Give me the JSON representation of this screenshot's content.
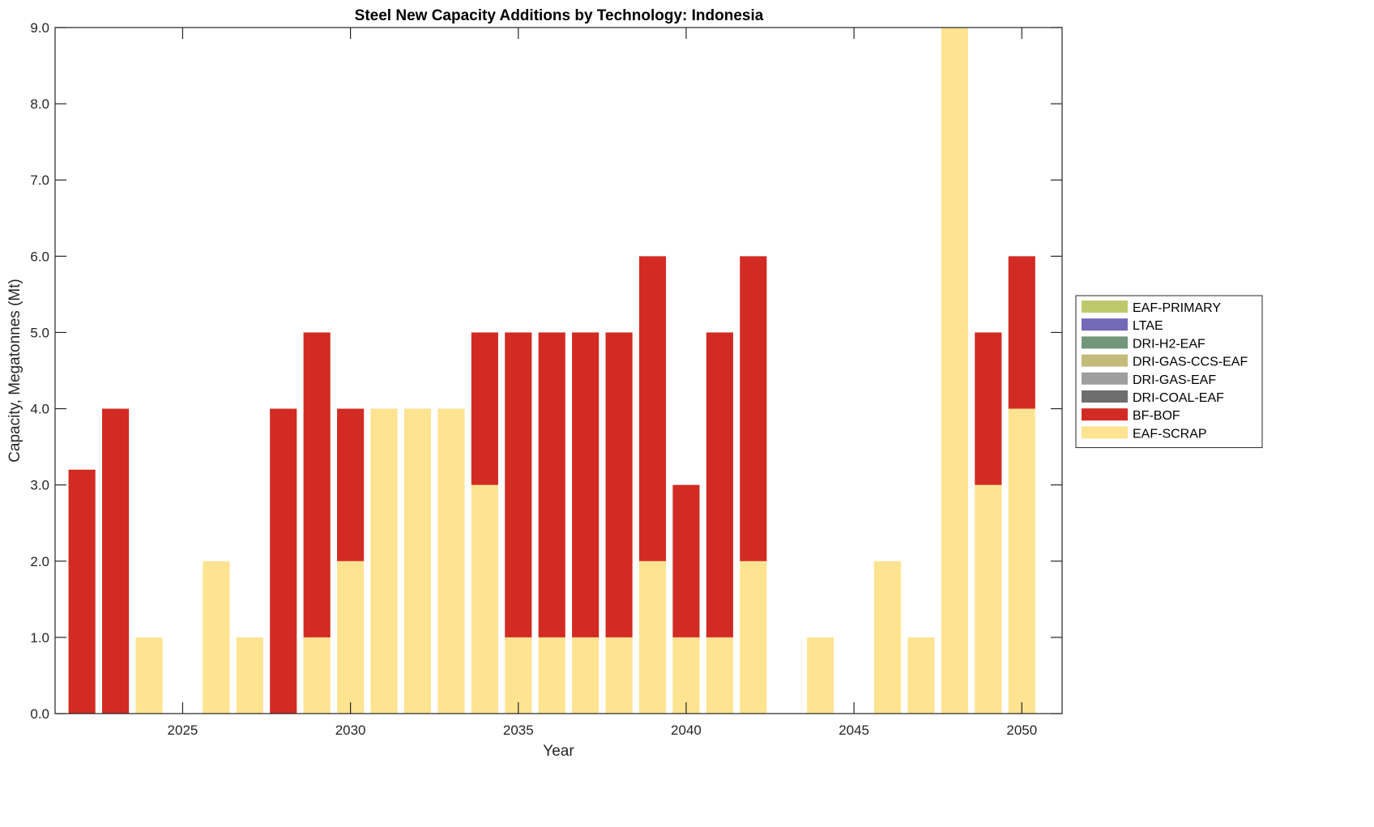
{
  "chart_data": {
    "type": "bar",
    "stacked": true,
    "title": "Steel New Capacity Additions by Technology: Indonesia",
    "xlabel": "Year",
    "ylabel": "Capacity, Megatonnes (Mt)",
    "xlim": [
      2021.2,
      2051.2
    ],
    "ylim": [
      0,
      9
    ],
    "xticks": [
      2025,
      2030,
      2035,
      2040,
      2045,
      2050
    ],
    "xtick_labels": [
      "2025",
      "2030",
      "2035",
      "2040",
      "2045",
      "2050"
    ],
    "yticks": [
      0,
      1,
      2,
      3,
      4,
      5,
      6,
      7,
      8,
      9
    ],
    "ytick_labels": [
      "0.0",
      "1.0",
      "2.0",
      "3.0",
      "4.0",
      "5.0",
      "6.0",
      "7.0",
      "8.0",
      "9.0"
    ],
    "grid": false,
    "legend_position": "right",
    "categories": [
      2022,
      2023,
      2024,
      2025,
      2026,
      2027,
      2028,
      2029,
      2030,
      2031,
      2032,
      2033,
      2034,
      2035,
      2036,
      2037,
      2038,
      2039,
      2040,
      2041,
      2042,
      2043,
      2044,
      2045,
      2046,
      2047,
      2048,
      2049,
      2050
    ],
    "series": [
      {
        "name": "EAF-SCRAP",
        "color": "#FEE391",
        "values": [
          0,
          0,
          1,
          0,
          2,
          1,
          0,
          1,
          2,
          4,
          4,
          4,
          3,
          1,
          1,
          1,
          1,
          2,
          1,
          1,
          2,
          0,
          1,
          0,
          2,
          1,
          9,
          3,
          4
        ]
      },
      {
        "name": "BF-BOF",
        "color": "#D22B23",
        "values": [
          3.2,
          4,
          0,
          0,
          0,
          0,
          4,
          4,
          2,
          0,
          0,
          0,
          2,
          4,
          4,
          4,
          4,
          4,
          2,
          4,
          4,
          0,
          0,
          0,
          0,
          0,
          0,
          2,
          2
        ]
      },
      {
        "name": "DRI-COAL-EAF",
        "color": "#6E6E6E",
        "values": [
          0,
          0,
          0,
          0,
          0,
          0,
          0,
          0,
          0,
          0,
          0,
          0,
          0,
          0,
          0,
          0,
          0,
          0,
          0,
          0,
          0,
          0,
          0,
          0,
          0,
          0,
          0,
          0,
          0
        ]
      },
      {
        "name": "DRI-GAS-EAF",
        "color": "#9E9E9E",
        "values": [
          0,
          0,
          0,
          0,
          0,
          0,
          0,
          0,
          0,
          0,
          0,
          0,
          0,
          0,
          0,
          0,
          0,
          0,
          0,
          0,
          0,
          0,
          0,
          0,
          0,
          0,
          0,
          0,
          0
        ]
      },
      {
        "name": "DRI-GAS-CCS-EAF",
        "color": "#C4BB7B",
        "values": [
          0,
          0,
          0,
          0,
          0,
          0,
          0,
          0,
          0,
          0,
          0,
          0,
          0,
          0,
          0,
          0,
          0,
          0,
          0,
          0,
          0,
          0,
          0,
          0,
          0,
          0,
          0,
          0,
          0
        ]
      },
      {
        "name": "DRI-H2-EAF",
        "color": "#71967A",
        "values": [
          0,
          0,
          0,
          0,
          0,
          0,
          0,
          0,
          0,
          0,
          0,
          0,
          0,
          0,
          0,
          0,
          0,
          0,
          0,
          0,
          0,
          0,
          0,
          0,
          0,
          0,
          0,
          0,
          0
        ]
      },
      {
        "name": "LTAE",
        "color": "#7468B8",
        "values": [
          0,
          0,
          0,
          0,
          0,
          0,
          0,
          0,
          0,
          0,
          0,
          0,
          0,
          0,
          0,
          0,
          0,
          0,
          0,
          0,
          0,
          0,
          0,
          0,
          0,
          0,
          0,
          0,
          0
        ]
      },
      {
        "name": "EAF-PRIMARY",
        "color": "#BEC96C",
        "values": [
          0,
          0,
          0,
          0,
          0,
          0,
          0,
          0,
          0,
          0,
          0,
          0,
          0,
          0,
          0,
          0,
          0,
          0,
          0,
          0,
          0,
          0,
          0,
          0,
          0,
          0,
          0,
          0,
          0
        ]
      }
    ],
    "legend_order": [
      "EAF-PRIMARY",
      "LTAE",
      "DRI-H2-EAF",
      "DRI-GAS-CCS-EAF",
      "DRI-GAS-EAF",
      "DRI-COAL-EAF",
      "BF-BOF",
      "EAF-SCRAP"
    ]
  }
}
